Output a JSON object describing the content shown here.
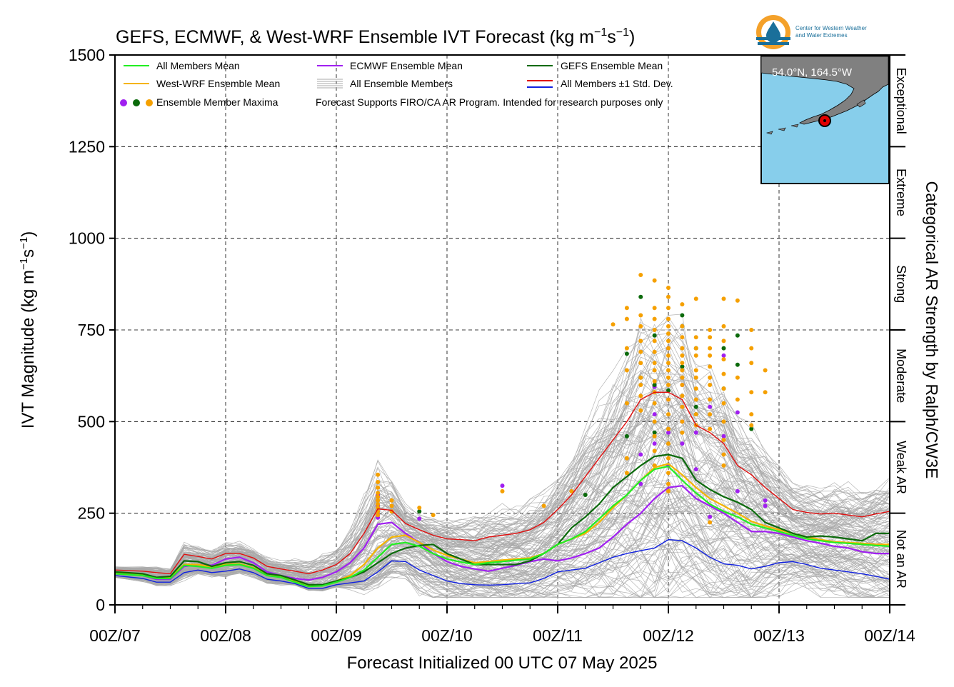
{
  "header": {
    "title_main": "GEFS, ECMWF, & West-WRF Ensemble IVT Forecast (kg m",
    "title_sup1": "−1",
    "title_mid": "s",
    "title_sup2": "−1",
    "title_end": ")",
    "logo_line1": "Center for Western Weather",
    "logo_line2": "and Water Extremes"
  },
  "colors": {
    "all_mean": "#22ee22",
    "westwrf_mean": "#f4b400",
    "ecmwf_mean": "#a020f0",
    "gefs_mean": "#0b6a0b",
    "plus_sd": "#e01010",
    "minus_sd": "#1020e0",
    "members": "#a9a9a9",
    "ocean": "#87ceeb",
    "land": "#808080",
    "dot_ecmwf": "#a020f0",
    "dot_gefs": "#0b6a0b",
    "dot_westwrf": "#f5a000"
  },
  "legend": {
    "all_mean": "All Members Mean",
    "westwrf_mean": "West-WRF Ensemble Mean",
    "maxima": "Ensemble Member Maxima",
    "ecmwf_mean": "ECMWF Ensemble Mean",
    "all_members": "All Ensemble Members",
    "disclaimer": "Forecast Supports FIRO/CA AR Program. Intended for research purposes only",
    "gefs_mean": "GEFS Ensemble Mean",
    "std_dev": "All Members ±1 Std. Dev."
  },
  "inset": {
    "location": "54.0°N, 164.5°W"
  },
  "categories": {
    "title": "Categorical AR Strength by Ralph/CW3E",
    "labels": [
      "Not an AR",
      "Weak AR",
      "Moderate",
      "Strong",
      "Extreme",
      "Exceptional"
    ]
  },
  "chart_data": {
    "type": "line",
    "title": "GEFS, ECMWF, & West-WRF Ensemble IVT Forecast (kg m−1s−1)",
    "xlabel": "Forecast Initialized 00 UTC 07 May 2025",
    "ylabel_main": "IVT Magnitude (kg m",
    "ylabel_sup1": "−1",
    "ylabel_mid": "s",
    "ylabel_sup2": "−1",
    "ylabel_end": ")",
    "x_unit": "forecast hour from 00Z/07",
    "xlim": [
      0,
      168
    ],
    "ylim": [
      0,
      1500
    ],
    "grid": true,
    "legend_position": "top-left",
    "x_ticks": [
      {
        "hour": 0,
        "label": "00Z/07"
      },
      {
        "hour": 24,
        "label": "00Z/08"
      },
      {
        "hour": 48,
        "label": "00Z/09"
      },
      {
        "hour": 72,
        "label": "00Z/10"
      },
      {
        "hour": 96,
        "label": "00Z/11"
      },
      {
        "hour": 120,
        "label": "00Z/12"
      },
      {
        "hour": 144,
        "label": "00Z/13"
      },
      {
        "hour": 168,
        "label": "00Z/14"
      }
    ],
    "y_ticks": [
      0,
      250,
      500,
      750,
      1000,
      1250,
      1500
    ],
    "category_thresholds": [
      0,
      250,
      500,
      750,
      1000,
      1250,
      1500
    ],
    "x": [
      0,
      6,
      9,
      12,
      15,
      18,
      21,
      24,
      27,
      30,
      33,
      36,
      39,
      42,
      45,
      48,
      51,
      54,
      57,
      60,
      63,
      66,
      69,
      72,
      75,
      78,
      81,
      84,
      87,
      90,
      93,
      96,
      99,
      102,
      105,
      108,
      111,
      114,
      117,
      120,
      123,
      126,
      129,
      132,
      135,
      138,
      141,
      144,
      147,
      150,
      153,
      156,
      159,
      162,
      165,
      168
    ],
    "series": [
      {
        "name": "All Members Mean",
        "color_key": "all_mean",
        "values": [
          85,
          80,
          72,
          72,
          108,
          105,
          100,
          108,
          110,
          100,
          80,
          75,
          62,
          50,
          52,
          62,
          75,
          95,
          130,
          165,
          170,
          160,
          140,
          125,
          117,
          110,
          115,
          118,
          122,
          125,
          140,
          165,
          180,
          200,
          235,
          270,
          300,
          340,
          370,
          378,
          340,
          305,
          275,
          255,
          240,
          220,
          210,
          200,
          190,
          180,
          175,
          170,
          168,
          165,
          162,
          160
        ]
      },
      {
        "name": "West-WRF Ensemble Mean",
        "color_key": "westwrf_mean",
        "values": [
          88,
          82,
          74,
          75,
          110,
          110,
          104,
          110,
          112,
          102,
          82,
          77,
          65,
          52,
          54,
          65,
          80,
          110,
          155,
          185,
          190,
          170,
          150,
          135,
          125,
          115,
          118,
          122,
          125,
          128,
          140,
          165,
          180,
          195,
          225,
          265,
          300,
          340,
          375,
          385,
          355,
          320,
          290,
          270,
          250,
          228,
          215,
          205,
          195,
          185,
          178,
          172,
          170,
          168,
          165,
          165
        ]
      },
      {
        "name": "ECMWF Ensemble Mean",
        "color_key": "ecmwf_mean",
        "values": [
          85,
          80,
          70,
          70,
          105,
          110,
          108,
          125,
          130,
          115,
          90,
          80,
          72,
          68,
          75,
          90,
          115,
          155,
          220,
          225,
          195,
          170,
          140,
          118,
          105,
          98,
          92,
          100,
          108,
          118,
          125,
          120,
          128,
          140,
          155,
          185,
          220,
          250,
          290,
          320,
          325,
          290,
          270,
          250,
          225,
          200,
          200,
          195,
          185,
          175,
          168,
          160,
          155,
          145,
          140,
          140
        ]
      },
      {
        "name": "GEFS Ensemble Mean",
        "color_key": "gefs_mean",
        "values": [
          90,
          85,
          75,
          78,
          120,
          118,
          105,
          115,
          118,
          108,
          85,
          80,
          68,
          55,
          55,
          65,
          75,
          90,
          115,
          140,
          155,
          162,
          165,
          140,
          125,
          110,
          110,
          110,
          110,
          120,
          140,
          165,
          210,
          240,
          275,
          320,
          350,
          380,
          405,
          410,
          400,
          340,
          315,
          295,
          280,
          260,
          225,
          210,
          195,
          185,
          188,
          185,
          180,
          175,
          195,
          195
        ]
      },
      {
        "name": "All Members +1 Std. Dev.",
        "color_key": "plus_sd",
        "values": [
          95,
          92,
          88,
          85,
          138,
          132,
          125,
          140,
          140,
          128,
          105,
          98,
          92,
          85,
          95,
          110,
          140,
          195,
          262,
          258,
          222,
          205,
          190,
          180,
          178,
          175,
          185,
          190,
          195,
          205,
          225,
          260,
          300,
          350,
          400,
          450,
          500,
          560,
          580,
          580,
          560,
          490,
          470,
          440,
          380,
          355,
          320,
          290,
          260,
          252,
          248,
          250,
          245,
          240,
          248,
          255
        ]
      },
      {
        "name": "All Members −1 Std. Dev.",
        "color_key": "minus_sd",
        "values": [
          80,
          72,
          62,
          62,
          88,
          95,
          88,
          92,
          98,
          88,
          70,
          65,
          58,
          45,
          45,
          55,
          60,
          65,
          90,
          120,
          118,
          95,
          80,
          65,
          58,
          55,
          54,
          55,
          58,
          60,
          72,
          90,
          95,
          100,
          115,
          130,
          140,
          148,
          155,
          178,
          175,
          155,
          130,
          112,
          108,
          98,
          105,
          115,
          118,
          110,
          100,
          95,
          90,
          85,
          78,
          70
        ]
      }
    ],
    "ensemble_maxima": [
      {
        "model": "ECMWF",
        "color_key": "dot_ecmwf",
        "x": 57,
        "y": [
          300,
          270,
          255,
          245,
          238
        ]
      },
      {
        "model": "ECMWF",
        "color_key": "dot_ecmwf",
        "x": 66,
        "y": [
          235
        ]
      },
      {
        "model": "ECMWF",
        "color_key": "dot_ecmwf",
        "x": 84,
        "y": [
          325
        ]
      },
      {
        "model": "ECMWF",
        "color_key": "dot_ecmwf",
        "x": 114,
        "y": [
          330,
          410
        ]
      },
      {
        "model": "ECMWF",
        "color_key": "dot_ecmwf",
        "x": 117,
        "y": [
          595,
          520,
          440
        ]
      },
      {
        "model": "ECMWF",
        "color_key": "dot_ecmwf",
        "x": 120,
        "y": [
          700,
          560,
          470,
          380
        ]
      },
      {
        "model": "ECMWF",
        "color_key": "dot_ecmwf",
        "x": 123,
        "y": [
          600,
          500,
          440
        ]
      },
      {
        "model": "ECMWF",
        "color_key": "dot_ecmwf",
        "x": 126,
        "y": [
          470,
          370
        ]
      },
      {
        "model": "ECMWF",
        "color_key": "dot_ecmwf",
        "x": 129,
        "y": [
          540,
          240
        ]
      },
      {
        "model": "ECMWF",
        "color_key": "dot_ecmwf",
        "x": 132,
        "y": [
          680,
          460
        ]
      },
      {
        "model": "ECMWF",
        "color_key": "dot_ecmwf",
        "x": 135,
        "y": [
          525,
          310
        ]
      },
      {
        "model": "ECMWF",
        "color_key": "dot_ecmwf",
        "x": 141,
        "y": [
          270,
          285
        ]
      },
      {
        "model": "GEFS",
        "color_key": "dot_gefs",
        "x": 66,
        "y": [
          255
        ]
      },
      {
        "model": "GEFS",
        "color_key": "dot_gefs",
        "x": 102,
        "y": [
          300
        ]
      },
      {
        "model": "GEFS",
        "color_key": "dot_gefs",
        "x": 111,
        "y": [
          685,
          460
        ]
      },
      {
        "model": "GEFS",
        "color_key": "dot_gefs",
        "x": 114,
        "y": [
          840,
          620
        ]
      },
      {
        "model": "GEFS",
        "color_key": "dot_gefs",
        "x": 117,
        "y": [
          735,
          600,
          470
        ]
      },
      {
        "model": "GEFS",
        "color_key": "dot_gefs",
        "x": 120,
        "y": [
          585
        ]
      },
      {
        "model": "GEFS",
        "color_key": "dot_gefs",
        "x": 123,
        "y": [
          790,
          760,
          650
        ]
      },
      {
        "model": "GEFS",
        "color_key": "dot_gefs",
        "x": 126,
        "y": [
          700,
          540,
          520
        ]
      },
      {
        "model": "GEFS",
        "color_key": "dot_gefs",
        "x": 132,
        "y": [
          700,
          590
        ]
      },
      {
        "model": "GEFS",
        "color_key": "dot_gefs",
        "x": 135,
        "y": [
          735,
          655
        ]
      },
      {
        "model": "GEFS",
        "color_key": "dot_gefs",
        "x": 138,
        "y": [
          480
        ]
      },
      {
        "model": "West-WRF",
        "color_key": "dot_westwrf",
        "x": 57,
        "y": [
          355,
          335,
          320,
          305,
          295,
          285,
          275,
          265,
          255,
          245
        ]
      },
      {
        "model": "West-WRF",
        "color_key": "dot_westwrf",
        "x": 60,
        "y": [
          285,
          270,
          255
        ]
      },
      {
        "model": "West-WRF",
        "color_key": "dot_westwrf",
        "x": 66,
        "y": [
          265
        ]
      },
      {
        "model": "West-WRF",
        "color_key": "dot_westwrf",
        "x": 69,
        "y": [
          245
        ]
      },
      {
        "model": "West-WRF",
        "color_key": "dot_westwrf",
        "x": 84,
        "y": [
          310
        ]
      },
      {
        "model": "West-WRF",
        "color_key": "dot_westwrf",
        "x": 93,
        "y": [
          270
        ]
      },
      {
        "model": "West-WRF",
        "color_key": "dot_westwrf",
        "x": 99,
        "y": [
          310
        ]
      },
      {
        "model": "West-WRF",
        "color_key": "dot_westwrf",
        "x": 108,
        "y": [
          765
        ]
      },
      {
        "model": "West-WRF",
        "color_key": "dot_westwrf",
        "x": 111,
        "y": [
          810,
          780,
          700,
          640,
          550,
          400,
          360
        ]
      },
      {
        "model": "West-WRF",
        "color_key": "dot_westwrf",
        "x": 114,
        "y": [
          900,
          790,
          760,
          720,
          690,
          660,
          620,
          600,
          570,
          530
        ]
      },
      {
        "model": "West-WRF",
        "color_key": "dot_westwrf",
        "x": 117,
        "y": [
          885,
          810,
          780,
          750,
          720,
          690,
          660,
          640,
          610,
          580,
          550,
          500,
          460,
          420,
          380
        ]
      },
      {
        "model": "West-WRF",
        "color_key": "dot_westwrf",
        "x": 120,
        "y": [
          865,
          840,
          810,
          780,
          760,
          740,
          720,
          700,
          680,
          660,
          640,
          620,
          600,
          560,
          520,
          480,
          440,
          400,
          360,
          330,
          310
        ]
      },
      {
        "model": "West-WRF",
        "color_key": "dot_westwrf",
        "x": 123,
        "y": [
          820,
          760,
          730,
          700,
          680,
          660,
          640,
          620,
          600,
          570,
          540,
          500,
          470
        ]
      },
      {
        "model": "West-WRF",
        "color_key": "dot_westwrf",
        "x": 126,
        "y": [
          835,
          730,
          700,
          680,
          640,
          620,
          590,
          560,
          520,
          490
        ]
      },
      {
        "model": "West-WRF",
        "color_key": "dot_westwrf",
        "x": 129,
        "y": [
          750,
          730,
          700,
          680,
          650,
          620,
          600,
          560,
          520,
          480
        ]
      },
      {
        "model": "West-WRF",
        "color_key": "dot_westwrf",
        "x": 132,
        "y": [
          835,
          760,
          720,
          670,
          630,
          590,
          550,
          500,
          450,
          410,
          380
        ]
      },
      {
        "model": "West-WRF",
        "color_key": "dot_westwrf",
        "x": 135,
        "y": [
          830,
          620,
          560
        ]
      },
      {
        "model": "West-WRF",
        "color_key": "dot_westwrf",
        "x": 138,
        "y": [
          750,
          700,
          660,
          580,
          520,
          490
        ]
      },
      {
        "model": "West-WRF",
        "color_key": "dot_westwrf",
        "x": 141,
        "y": [
          640,
          580
        ]
      },
      {
        "model": "West-WRF",
        "color_key": "dot_westwrf",
        "x": 129,
        "y": [
          225
        ]
      }
    ]
  }
}
